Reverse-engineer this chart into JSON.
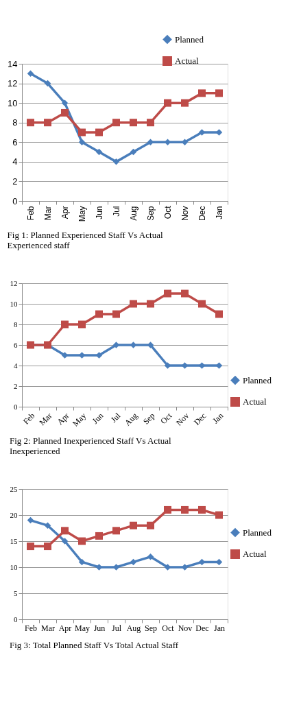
{
  "chart_data": [
    {
      "type": "line",
      "categories": [
        "Feb",
        "Mar",
        "Apr",
        "May",
        "Jun",
        "Jul",
        "Aug",
        "Sep",
        "Oct",
        "Nov",
        "Dec",
        "Jan"
      ],
      "ylim": [
        0,
        14
      ],
      "yticks": [
        0,
        2,
        4,
        6,
        8,
        10,
        12,
        14
      ],
      "grid": "y",
      "legend": "top right",
      "line_style": "solid",
      "series": [
        {
          "name": "Planned",
          "color": "#4a7ebb",
          "marker": "diamond",
          "values": [
            13,
            12,
            10,
            6,
            5,
            4,
            5,
            6,
            6,
            6,
            7,
            7
          ]
        },
        {
          "name": "Actual",
          "color": "#be4b48",
          "marker": "square",
          "values": [
            8,
            8,
            9,
            7,
            7,
            8,
            8,
            8,
            10,
            10,
            11,
            11
          ]
        }
      ],
      "annotations": [
        "Fig 1: Planned Experienced Staff Vs Actual Experienced staff"
      ]
    },
    {
      "type": "line",
      "categories": [
        "Feb",
        "Mar",
        "Apr",
        "May",
        "Jun",
        "Jul",
        "Aug",
        "Sep",
        "Oct",
        "Nov",
        "Dec",
        "Jan"
      ],
      "ylim": [
        0,
        12
      ],
      "yticks": [
        0,
        2,
        4,
        6,
        8,
        10,
        12
      ],
      "grid": "y",
      "legend": "bottom right",
      "line_style": "solid",
      "series": [
        {
          "name": "Planned",
          "color": "#4a7ebb",
          "marker": "diamond",
          "values": [
            6,
            6,
            5,
            5,
            5,
            6,
            6,
            6,
            4,
            4,
            4,
            4
          ]
        },
        {
          "name": "Actual",
          "color": "#be4b48",
          "marker": "square",
          "values": [
            6,
            6,
            8,
            8,
            9,
            9,
            10,
            10,
            11,
            11,
            10,
            9
          ]
        }
      ],
      "annotations": [
        "Fig 2: Planned Inexperienced Staff Vs Actual Inexperienced"
      ]
    },
    {
      "type": "line",
      "categories": [
        "Feb",
        "Mar",
        "Apr",
        "May",
        "Jun",
        "Jul",
        "Aug",
        "Sep",
        "Oct",
        "Nov",
        "Dec",
        "Jan"
      ],
      "ylim": [
        0,
        25
      ],
      "yticks": [
        0,
        5,
        10,
        15,
        20,
        25
      ],
      "grid": "y",
      "legend": "right",
      "line_style": "solid",
      "series": [
        {
          "name": "Planned",
          "color": "#4a7ebb",
          "marker": "diamond",
          "values": [
            19,
            18,
            15,
            11,
            10,
            10,
            11,
            12,
            10,
            10,
            11,
            11
          ]
        },
        {
          "name": "Actual",
          "color": "#be4b48",
          "marker": "square",
          "values": [
            14,
            14,
            17,
            15,
            16,
            17,
            18,
            18,
            21,
            21,
            21,
            20
          ]
        }
      ],
      "annotations": [
        "Fig 3: Total Planned Staff Vs Total Actual Staff"
      ]
    }
  ]
}
